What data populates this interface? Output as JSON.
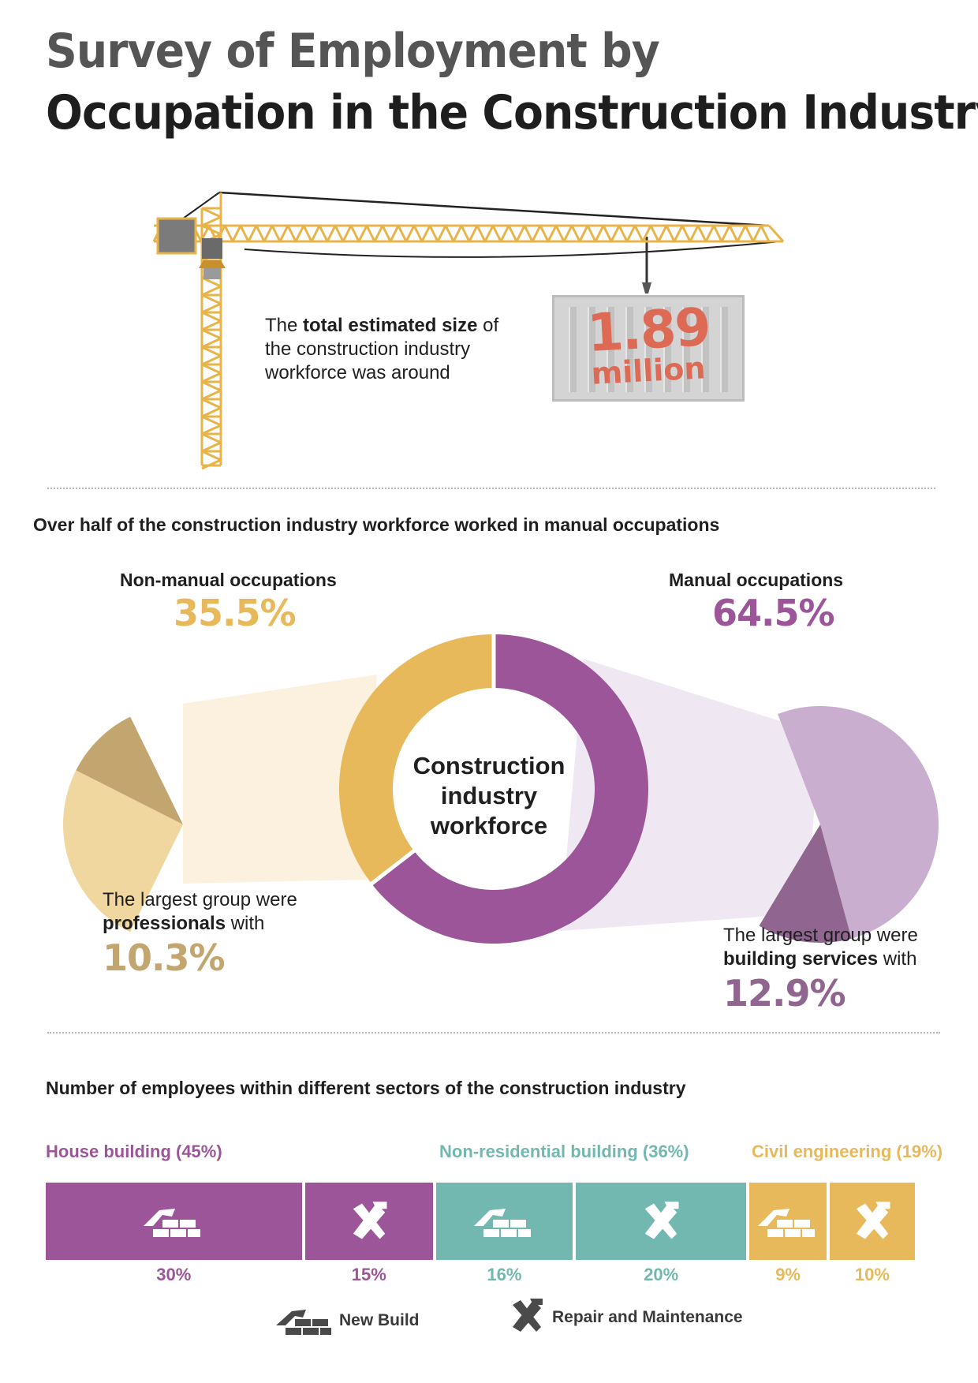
{
  "title": {
    "line1": "Survey of Employment by",
    "line2": "Occupation in the Construction Industry"
  },
  "workforce": {
    "text_prefix": "The ",
    "text_bold": "total estimated size",
    "text_suffix_line1": " of",
    "text_line2": "the construction industry",
    "text_line3": "workforce was around",
    "number": "1.89",
    "unit": "million"
  },
  "occupations": {
    "heading": "Over half of the construction industry workforce worked in manual occupations",
    "nonmanual_label": "Non-manual occupations",
    "nonmanual_pct": "35.5%",
    "manual_label": "Manual occupations",
    "manual_pct": "64.5%",
    "center_line1": "Construction",
    "center_line2": "industry",
    "center_line3": "workforce",
    "left_text_line1": "The largest group were",
    "left_text_bold": "professionals",
    "left_text_suffix": " with",
    "left_pct": "10.3%",
    "right_text_line1": "The largest group were",
    "right_text_bold": "building services",
    "right_text_suffix": " with",
    "right_pct": "12.9%"
  },
  "sectors": {
    "heading": "Number of employees within different sectors of the construction industry",
    "house_label": "House building (45%)",
    "nonres_label": "Non-residential building (36%)",
    "civil_label": "Civil engineering (19%)",
    "legend_new": "New Build",
    "legend_repair": "Repair and Maintenance"
  },
  "colors": {
    "house": "#9b5598",
    "nonres": "#72b8b0",
    "civil": "#e8b95a",
    "nonmanual_dark": "#c3a66f",
    "manual_dark": "#906690",
    "nonmanual_light": "#f0d79f",
    "manual_light": "#c9aed0",
    "crane": "#e8b44a"
  },
  "chart_data": [
    {
      "type": "pie",
      "title": "Construction industry workforce",
      "labels": [
        "Non-manual occupations",
        "Manual occupations"
      ],
      "values": [
        35.5,
        64.5
      ],
      "unit": "%",
      "subgroups": [
        {
          "parent": "Non-manual occupations",
          "label": "Professionals",
          "value": 10.3
        },
        {
          "parent": "Manual occupations",
          "label": "Building services",
          "value": 12.9
        }
      ]
    },
    {
      "type": "bar",
      "title": "Number of employees within different sectors of the construction industry",
      "orientation": "horizontal-stacked",
      "sectors": [
        "House building",
        "Non-residential building",
        "Civil engineering"
      ],
      "sector_totals": [
        45,
        36,
        19
      ],
      "segments": [
        {
          "sector": "House building",
          "kind": "New Build",
          "value": 30,
          "label": "30%"
        },
        {
          "sector": "House building",
          "kind": "Repair and Maintenance",
          "value": 15,
          "label": "15%"
        },
        {
          "sector": "Non-residential building",
          "kind": "New Build",
          "value": 16,
          "label": "16%"
        },
        {
          "sector": "Non-residential building",
          "kind": "Repair and Maintenance",
          "value": 20,
          "label": "20%"
        },
        {
          "sector": "Civil engineering",
          "kind": "New Build",
          "value": 9,
          "label": "9%"
        },
        {
          "sector": "Civil engineering",
          "kind": "Repair and Maintenance",
          "value": 10,
          "label": "10%"
        }
      ]
    }
  ]
}
